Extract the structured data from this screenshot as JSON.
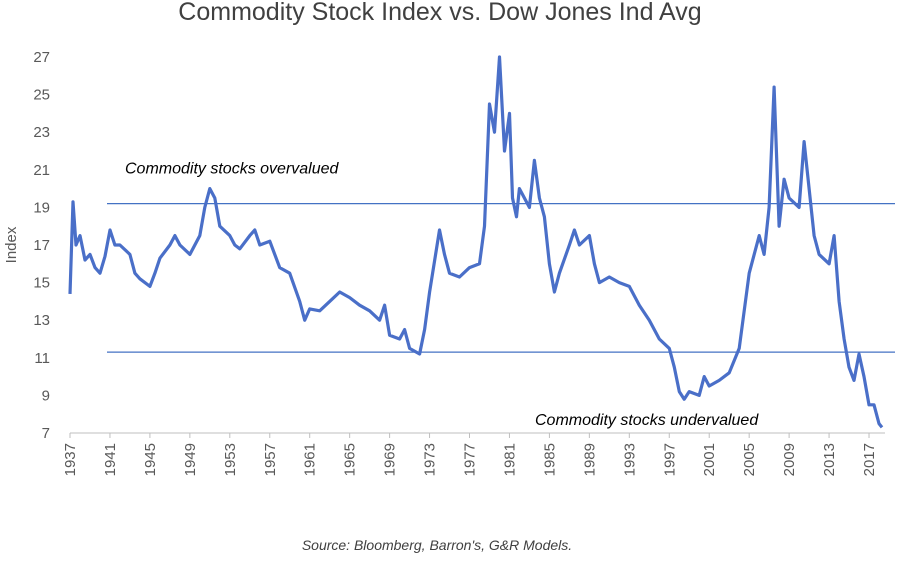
{
  "chart_data": {
    "type": "line",
    "title": "Commodity Stock Index vs. Dow Jones Ind Avg",
    "ylabel": "Index",
    "source": "Source: Bloomberg, Barron's, G&R Models.",
    "xlim": [
      1937,
      2018.6
    ],
    "xticks": [
      1937,
      1941,
      1945,
      1949,
      1953,
      1957,
      1961,
      1965,
      1969,
      1973,
      1977,
      1981,
      1985,
      1989,
      1993,
      1997,
      2001,
      2005,
      2009,
      2013,
      2017
    ],
    "ylim": [
      7,
      27
    ],
    "yticks": [
      7,
      9,
      11,
      13,
      15,
      17,
      19,
      21,
      23,
      25,
      27
    ],
    "reference_lines": [
      {
        "value": 19.2,
        "label": "Commodity stocks overvalued",
        "color": "#4472c4"
      },
      {
        "value": 11.3,
        "label": "Commodity stocks undervalued",
        "color": "#4472c4"
      }
    ],
    "series": [
      {
        "name": "Index",
        "color": "#4a6fc8",
        "x": [
          1937.0,
          1937.3,
          1937.6,
          1938,
          1938.5,
          1939,
          1939.5,
          1940,
          1940.5,
          1941,
          1941.5,
          1942,
          1943,
          1943.5,
          1944,
          1945,
          1945.5,
          1946,
          1947,
          1947.5,
          1948,
          1949,
          1950,
          1950.5,
          1951,
          1951.5,
          1952,
          1953,
          1953.5,
          1954,
          1955,
          1955.5,
          1956,
          1957,
          1958,
          1959,
          1960,
          1960.5,
          1961,
          1962,
          1963,
          1964,
          1965,
          1966,
          1967,
          1968,
          1968.5,
          1969,
          1970,
          1970.5,
          1971,
          1972,
          1972.5,
          1973,
          1974,
          1974.5,
          1975,
          1976,
          1977,
          1978,
          1978.5,
          1979,
          1979.5,
          1980,
          1980.5,
          1981,
          1981.3,
          1981.7,
          1982,
          1983,
          1983.5,
          1984,
          1984.5,
          1985,
          1985.5,
          1986,
          1987,
          1987.5,
          1988,
          1989,
          1989.5,
          1990,
          1991,
          1992,
          1993,
          1994,
          1995,
          1996,
          1997,
          1997.5,
          1998,
          1998.5,
          1999,
          2000,
          2000.5,
          2001,
          2002,
          2003,
          2004,
          2004.5,
          2005,
          2006,
          2006.5,
          2007,
          2007.5,
          2008,
          2008.5,
          2009,
          2010,
          2010.5,
          2011,
          2011.5,
          2012,
          2013,
          2013.5,
          2014,
          2014.5,
          2015,
          2015.5,
          2016,
          2016.5,
          2017,
          2017.5,
          2018,
          2018.3
        ],
        "values": [
          14.4,
          19.3,
          17.0,
          17.5,
          16.2,
          16.5,
          15.8,
          15.5,
          16.4,
          17.8,
          17.0,
          17.0,
          16.5,
          15.5,
          15.2,
          14.8,
          15.5,
          16.3,
          17.0,
          17.5,
          17.0,
          16.5,
          17.5,
          19.0,
          20.0,
          19.5,
          18.0,
          17.5,
          17.0,
          16.8,
          17.5,
          17.8,
          17.0,
          17.2,
          15.8,
          15.5,
          14.0,
          13.0,
          13.6,
          13.5,
          14.0,
          14.5,
          14.2,
          13.8,
          13.5,
          13.0,
          13.8,
          12.2,
          12.0,
          12.5,
          11.5,
          11.2,
          12.5,
          14.5,
          17.8,
          16.5,
          15.5,
          15.3,
          15.8,
          16.0,
          18.0,
          24.5,
          23.0,
          27.0,
          22.0,
          24.0,
          19.5,
          18.5,
          20.0,
          19.0,
          21.5,
          19.5,
          18.5,
          16.0,
          14.5,
          15.5,
          17.0,
          17.8,
          17.0,
          17.5,
          16.0,
          15.0,
          15.3,
          15.0,
          14.8,
          13.8,
          13.0,
          12.0,
          11.5,
          10.5,
          9.2,
          8.8,
          9.2,
          9.0,
          10.0,
          9.5,
          9.8,
          10.2,
          11.5,
          13.5,
          15.5,
          17.5,
          16.5,
          19.0,
          25.4,
          18.0,
          20.5,
          19.5,
          19.0,
          22.5,
          20.0,
          17.5,
          16.5,
          16.0,
          17.5,
          14.0,
          12.0,
          10.5,
          9.8,
          11.2,
          10.0,
          8.5,
          8.5,
          7.5,
          7.3
        ]
      }
    ]
  }
}
